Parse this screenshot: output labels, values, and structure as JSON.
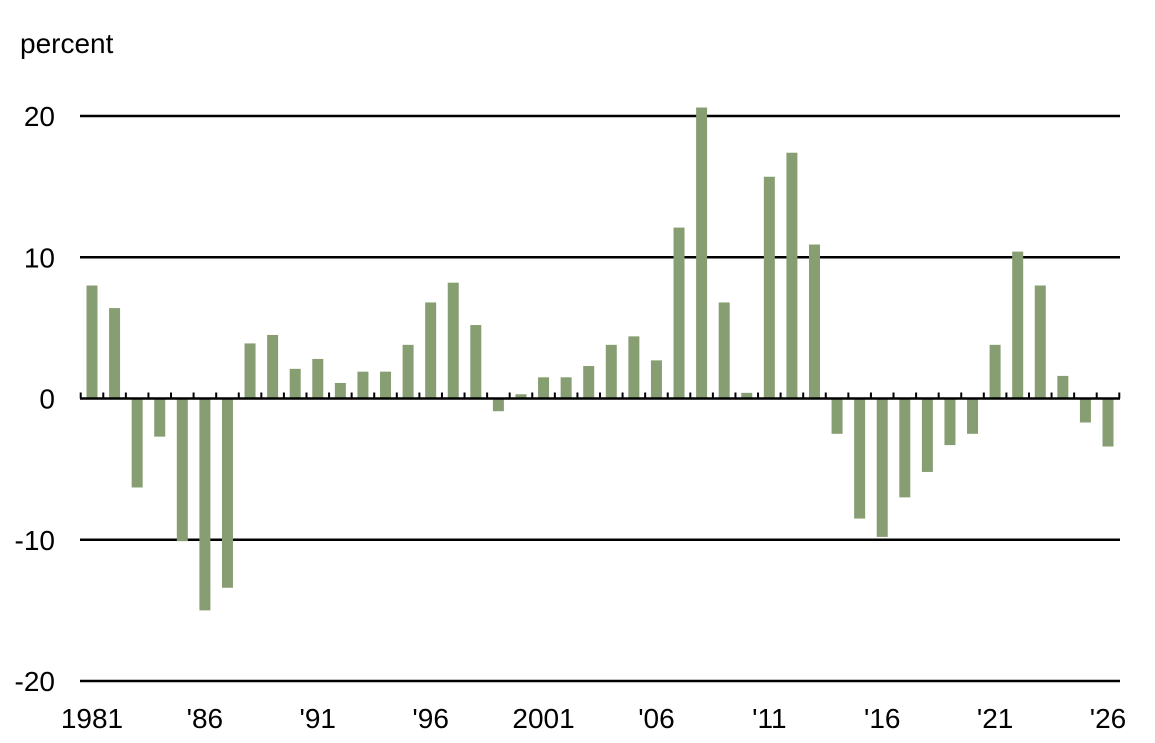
{
  "chart_data": {
    "type": "bar",
    "ylabel": "percent",
    "ylim": [
      -20,
      20
    ],
    "yticks": [
      20,
      10,
      0,
      -10,
      -20
    ],
    "grid": true,
    "bar_color": "#879e72",
    "categories": [
      1981,
      1982,
      1983,
      1984,
      1985,
      1986,
      1987,
      1988,
      1989,
      1990,
      1991,
      1992,
      1993,
      1994,
      1995,
      1996,
      1997,
      1998,
      1999,
      2000,
      2001,
      2002,
      2003,
      2004,
      2005,
      2006,
      2007,
      2008,
      2009,
      2010,
      2011,
      2012,
      2013,
      2014,
      2015,
      2016,
      2017,
      2018,
      2019,
      2020,
      2021,
      2022,
      2023,
      2024,
      2025,
      2026
    ],
    "values": [
      8.0,
      6.4,
      -6.3,
      -2.7,
      -10.1,
      -15.0,
      -13.4,
      3.9,
      4.5,
      2.1,
      2.8,
      1.1,
      1.9,
      1.9,
      3.8,
      6.8,
      8.2,
      5.2,
      -0.9,
      0.3,
      1.5,
      1.5,
      2.3,
      3.8,
      4.4,
      2.7,
      12.1,
      20.6,
      6.8,
      0.4,
      15.7,
      17.4,
      10.9,
      -2.5,
      -8.5,
      -9.8,
      -7.0,
      -5.2,
      -3.3,
      -2.5,
      3.8,
      10.4,
      8.0,
      1.6,
      -1.7,
      -3.4
    ],
    "xtick_labels": [
      {
        "year": 1981,
        "label": "1981"
      },
      {
        "year": 1986,
        "label": "'86"
      },
      {
        "year": 1991,
        "label": "'91"
      },
      {
        "year": 1996,
        "label": "'96"
      },
      {
        "year": 2001,
        "label": "2001"
      },
      {
        "year": 2006,
        "label": "'06"
      },
      {
        "year": 2011,
        "label": "'11"
      },
      {
        "year": 2016,
        "label": "'16"
      },
      {
        "year": 2021,
        "label": "'21"
      },
      {
        "year": 2026,
        "label": "'26"
      }
    ]
  }
}
